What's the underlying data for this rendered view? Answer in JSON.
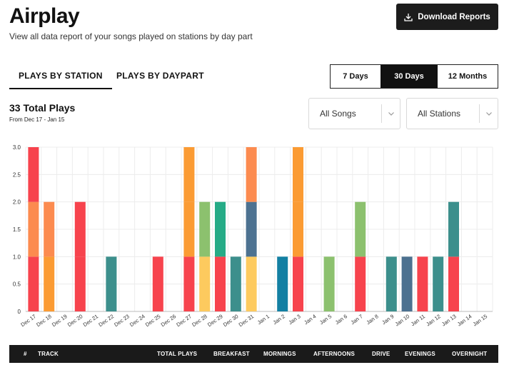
{
  "header": {
    "title": "Airplay",
    "subtitle": "View all data report of your songs played on stations by day part",
    "download_label": "Download Reports"
  },
  "tabs": [
    {
      "label": "PLAYS BY STATION",
      "active": true
    },
    {
      "label": "PLAYS BY DAYPART",
      "active": false
    }
  ],
  "ranges": [
    {
      "label": "7 Days",
      "selected": false
    },
    {
      "label": "30 Days",
      "selected": true
    },
    {
      "label": "12 Months",
      "selected": false
    }
  ],
  "summary": {
    "total_plays": "33 Total Plays",
    "date_range": "From Dec 17 - Jan 15"
  },
  "filters": {
    "songs": "All Songs",
    "stations": "All Stations"
  },
  "colors": {
    "red": "#f7434d",
    "orange": "#fc8b4f",
    "amber": "#fb9b33",
    "yellow": "#fdca5e",
    "green": "#8cc16e",
    "emerald": "#25ab86",
    "teal": "#3c8f8c",
    "slate": "#4c7190",
    "blue": "#1380a3"
  },
  "chart_data": {
    "type": "bar",
    "stacked": true,
    "categories": [
      "Dec 17",
      "Dec 18",
      "Dec 19",
      "Dec 20",
      "Dec 21",
      "Dec 22",
      "Dec 23",
      "Dec 24",
      "Dec 25",
      "Dec 26",
      "Dec 27",
      "Dec 28",
      "Dec 29",
      "Dec 30",
      "Dec 31",
      "Jan 1",
      "Jan 2",
      "Jan 3",
      "Jan 4",
      "Jan 5",
      "Jan 6",
      "Jan 7",
      "Jan 8",
      "Jan 9",
      "Jan 10",
      "Jan 11",
      "Jan 12",
      "Jan 13",
      "Jan 14",
      "Jan 15"
    ],
    "yticks": [
      "0",
      "0.5",
      "1.0",
      "1.5",
      "2.0",
      "2.5",
      "3.0"
    ],
    "ylim": [
      0,
      3
    ],
    "grid": true,
    "stacks": [
      [
        "red",
        "orange",
        "red"
      ],
      [
        "amber",
        "orange"
      ],
      [],
      [
        "red",
        "red"
      ],
      [],
      [
        "teal"
      ],
      [],
      [],
      [
        "red"
      ],
      [],
      [
        "red",
        "amber",
        "amber"
      ],
      [
        "yellow",
        "green"
      ],
      [
        "red",
        "emerald"
      ],
      [
        "teal"
      ],
      [
        "yellow",
        "slate",
        "orange"
      ],
      [],
      [
        "blue"
      ],
      [
        "red",
        "amber",
        "amber"
      ],
      [],
      [
        "green"
      ],
      [],
      [
        "red",
        "green"
      ],
      [],
      [
        "teal"
      ],
      [
        "slate"
      ],
      [
        "red"
      ],
      [
        "teal"
      ],
      [
        "red",
        "teal"
      ],
      [],
      []
    ]
  },
  "table": {
    "columns": [
      "#",
      "TRACK",
      "TOTAL PLAYS",
      "BREAKFAST",
      "MORNINGS",
      "AFTERNOONS",
      "DRIVE",
      "EVENINGS",
      "OVERNIGHT"
    ]
  }
}
